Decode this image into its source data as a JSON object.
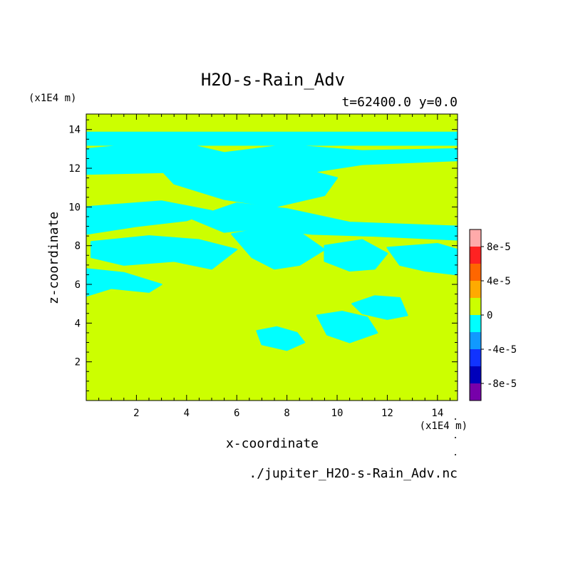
{
  "chart_data": {
    "type": "heatmap",
    "title": "H2O-s-Rain_Adv",
    "subtitle": "t=62400.0 y=0.0",
    "xlabel": "x-coordinate",
    "ylabel": "z-coordinate",
    "x_unit_label": "(x1E4 m)",
    "y_unit_label": "(x1E4 m)",
    "source_file": "./jupiter_H2O-s-Rain_Adv.nc",
    "xlim": [
      0,
      14.8
    ],
    "ylim": [
      0,
      14.8
    ],
    "x_ticks": [
      2,
      4,
      6,
      8,
      10,
      12,
      14
    ],
    "y_ticks": [
      2,
      4,
      6,
      8,
      10,
      12,
      14
    ],
    "x_tick_labels": [
      "2",
      "4",
      "6",
      "8",
      "10",
      "12",
      "14"
    ],
    "y_tick_labels": [
      "2",
      "4",
      "6",
      "8",
      "10",
      "12",
      "14"
    ],
    "background_level_color": "#ccff00",
    "negative_region_color": "#00ffff",
    "colorbar": {
      "levels": [
        {
          "color": "#ffaaaa"
        },
        {
          "color": "#ff2222"
        },
        {
          "color": "#ff6600"
        },
        {
          "color": "#ffaa00"
        },
        {
          "color": "#ccff00"
        },
        {
          "color": "#00ffff"
        },
        {
          "color": "#1199ff"
        },
        {
          "color": "#1133ff"
        },
        {
          "color": "#0000bb"
        },
        {
          "color": "#7700aa"
        }
      ],
      "tick_labels": [
        "8e-5",
        "4e-5",
        "0",
        "-4e-5",
        "-8e-5"
      ]
    },
    "negative_regions": [
      {
        "x": [
          0.0,
          14.8,
          14.8,
          0.0
        ],
        "z": [
          13.85,
          13.85,
          13.2,
          13.2
        ]
      },
      {
        "x": [
          0.0,
          3.5,
          5.5,
          8.0,
          11.0,
          14.8,
          14.8,
          11.0,
          8.0,
          5.5,
          3.5,
          0.0
        ],
        "z": [
          13.0,
          13.4,
          12.8,
          13.2,
          12.9,
          13.0,
          12.4,
          12.2,
          11.6,
          12.0,
          11.8,
          11.7
        ]
      },
      {
        "x": [
          3.0,
          6.0,
          8.5,
          10.0,
          9.5,
          7.5,
          5.5,
          3.5
        ],
        "z": [
          11.9,
          12.2,
          12.0,
          11.5,
          10.6,
          10.0,
          10.4,
          11.2
        ]
      },
      {
        "x": [
          0.0,
          3.0,
          5.0,
          4.0,
          2.0,
          0.0
        ],
        "z": [
          10.0,
          10.3,
          9.8,
          9.3,
          9.0,
          8.6
        ]
      },
      {
        "x": [
          4.2,
          6.0,
          8.0,
          10.5,
          14.8,
          14.8,
          11.5,
          9.0,
          7.0,
          5.5
        ],
        "z": [
          9.4,
          10.2,
          9.9,
          9.2,
          9.0,
          8.3,
          8.5,
          8.6,
          8.9,
          8.7
        ]
      },
      {
        "x": [
          5.8,
          7.0,
          8.5,
          9.5,
          8.5,
          7.5,
          6.6
        ],
        "z": [
          8.6,
          8.9,
          8.7,
          7.8,
          7.0,
          6.8,
          7.4
        ]
      },
      {
        "x": [
          0.2,
          2.5,
          4.5,
          6.0,
          5.0,
          3.5,
          1.5,
          0.2
        ],
        "z": [
          8.2,
          8.5,
          8.3,
          7.8,
          6.8,
          7.2,
          7.0,
          7.4
        ]
      },
      {
        "x": [
          9.5,
          11.0,
          12.0,
          11.5,
          10.5,
          9.5
        ],
        "z": [
          8.0,
          8.3,
          7.6,
          6.8,
          6.7,
          7.2
        ]
      },
      {
        "x": [
          12.0,
          14.0,
          14.8,
          14.8,
          13.5,
          12.5
        ],
        "z": [
          7.9,
          8.1,
          7.8,
          6.5,
          6.7,
          7.0
        ]
      },
      {
        "x": [
          0.0,
          1.5,
          3.0,
          2.5,
          1.0,
          0.0
        ],
        "z": [
          6.8,
          6.6,
          6.0,
          5.6,
          5.8,
          5.4
        ]
      },
      {
        "x": [
          10.6,
          11.5,
          12.5,
          12.8,
          12.0,
          11.0
        ],
        "z": [
          5.0,
          5.4,
          5.3,
          4.4,
          4.2,
          4.5
        ]
      },
      {
        "x": [
          9.2,
          10.2,
          11.2,
          11.6,
          10.5,
          9.6
        ],
        "z": [
          4.4,
          4.6,
          4.3,
          3.5,
          3.0,
          3.4
        ]
      },
      {
        "x": [
          6.8,
          7.6,
          8.4,
          8.7,
          8.0,
          7.0
        ],
        "z": [
          3.6,
          3.8,
          3.5,
          3.0,
          2.6,
          2.9
        ]
      }
    ]
  }
}
